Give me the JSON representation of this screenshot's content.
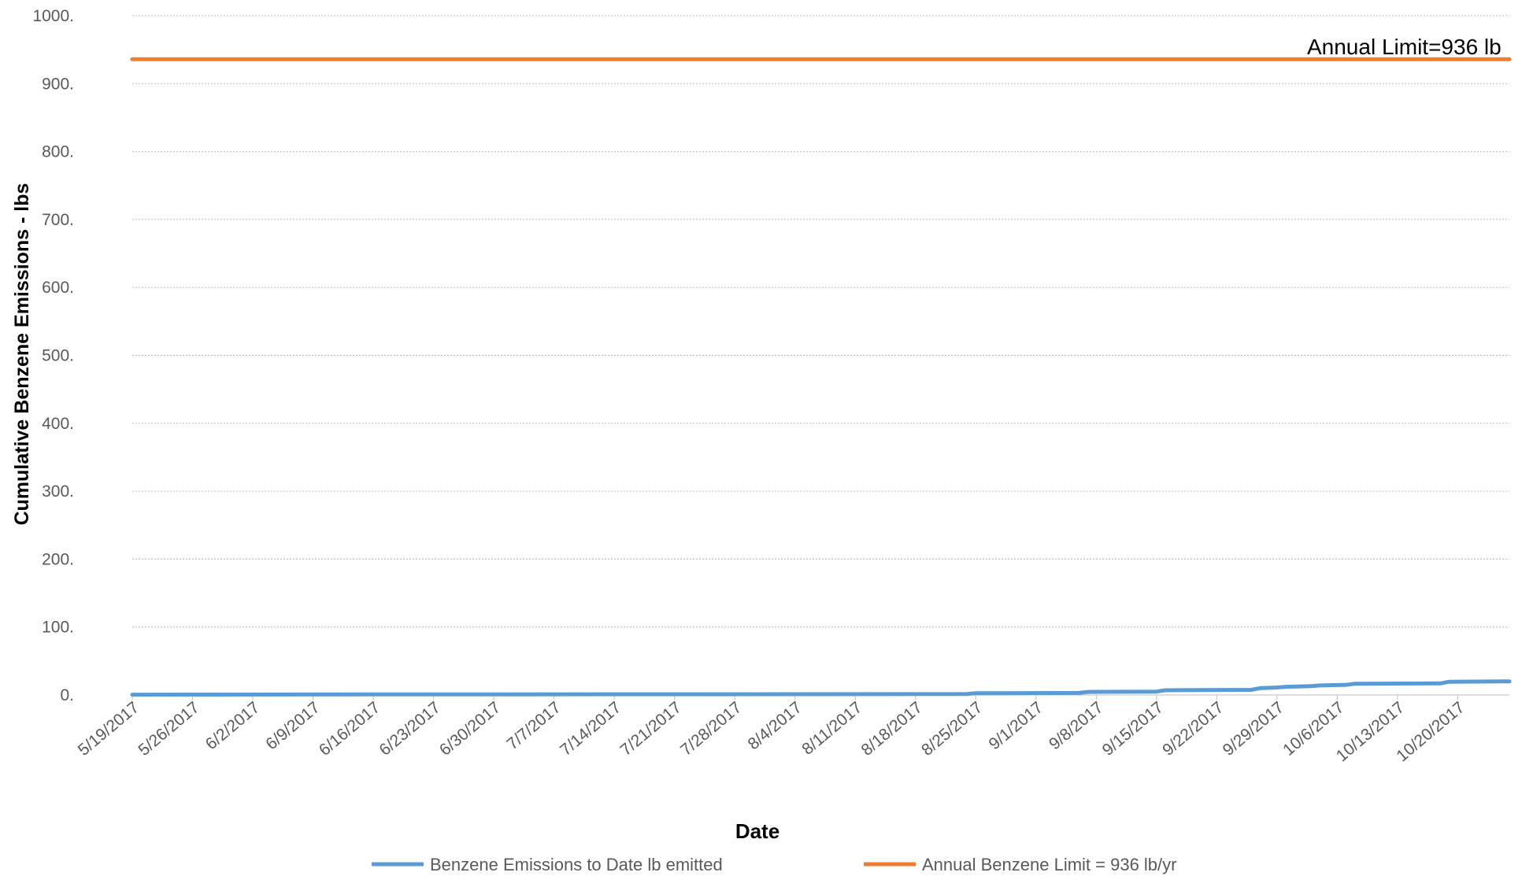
{
  "chart_data": {
    "type": "line",
    "title": "",
    "xlabel": "Date",
    "ylabel": "Cumulative Benzene Emissions - lbs",
    "ylim": [
      0,
      1000
    ],
    "yticks": [
      {
        "value": 0,
        "label": "0."
      },
      {
        "value": 100,
        "label": "100."
      },
      {
        "value": 200,
        "label": "200."
      },
      {
        "value": 300,
        "label": "300."
      },
      {
        "value": 400,
        "label": "400."
      },
      {
        "value": 500,
        "label": "500."
      },
      {
        "value": 600,
        "label": "600."
      },
      {
        "value": 700,
        "label": "700."
      },
      {
        "value": 800,
        "label": "800."
      },
      {
        "value": 900,
        "label": "900."
      },
      {
        "value": 1000,
        "label": "1000."
      }
    ],
    "xlim": [
      "2017-05-19",
      "2017-10-26"
    ],
    "xticks": [
      {
        "date": "2017-05-19",
        "label": "5/19/2017"
      },
      {
        "date": "2017-05-26",
        "label": "5/26/2017"
      },
      {
        "date": "2017-06-02",
        "label": "6/2/2017"
      },
      {
        "date": "2017-06-09",
        "label": "6/9/2017"
      },
      {
        "date": "2017-06-16",
        "label": "6/16/2017"
      },
      {
        "date": "2017-06-23",
        "label": "6/23/2017"
      },
      {
        "date": "2017-06-30",
        "label": "6/30/2017"
      },
      {
        "date": "2017-07-07",
        "label": "7/7/2017"
      },
      {
        "date": "2017-07-14",
        "label": "7/14/2017"
      },
      {
        "date": "2017-07-21",
        "label": "7/21/2017"
      },
      {
        "date": "2017-07-28",
        "label": "7/28/2017"
      },
      {
        "date": "2017-08-04",
        "label": "8/4/2017"
      },
      {
        "date": "2017-08-11",
        "label": "8/11/2017"
      },
      {
        "date": "2017-08-18",
        "label": "8/18/2017"
      },
      {
        "date": "2017-08-25",
        "label": "8/25/2017"
      },
      {
        "date": "2017-09-01",
        "label": "9/1/2017"
      },
      {
        "date": "2017-09-08",
        "label": "9/8/2017"
      },
      {
        "date": "2017-09-15",
        "label": "9/15/2017"
      },
      {
        "date": "2017-09-22",
        "label": "9/22/2017"
      },
      {
        "date": "2017-09-29",
        "label": "9/29/2017"
      },
      {
        "date": "2017-10-06",
        "label": "10/6/2017"
      },
      {
        "date": "2017-10-13",
        "label": "10/13/2017"
      },
      {
        "date": "2017-10-20",
        "label": "10/20/2017"
      }
    ],
    "grid": true,
    "legend_position": "bottom",
    "series": [
      {
        "name": "Benzene Emissions to Date lb emitted",
        "color": "#5b9bd5",
        "points": [
          {
            "x": "2017-05-19",
            "y": 0.5
          },
          {
            "x": "2017-06-15",
            "y": 0.8
          },
          {
            "x": "2017-07-20",
            "y": 1.0
          },
          {
            "x": "2017-08-24",
            "y": 1.4
          },
          {
            "x": "2017-08-25",
            "y": 2.5
          },
          {
            "x": "2017-09-06",
            "y": 3.0
          },
          {
            "x": "2017-09-07",
            "y": 4.5
          },
          {
            "x": "2017-09-15",
            "y": 5.0
          },
          {
            "x": "2017-09-16",
            "y": 7.0
          },
          {
            "x": "2017-09-26",
            "y": 7.5
          },
          {
            "x": "2017-09-27",
            "y": 10.0
          },
          {
            "x": "2017-09-29",
            "y": 11.0
          },
          {
            "x": "2017-09-30",
            "y": 12.0
          },
          {
            "x": "2017-10-03",
            "y": 13.0
          },
          {
            "x": "2017-10-04",
            "y": 14.0
          },
          {
            "x": "2017-10-07",
            "y": 15.0
          },
          {
            "x": "2017-10-08",
            "y": 16.5
          },
          {
            "x": "2017-10-18",
            "y": 17.0
          },
          {
            "x": "2017-10-19",
            "y": 19.5
          },
          {
            "x": "2017-10-26",
            "y": 20.0
          }
        ]
      },
      {
        "name": "Annual Benzene Limit = 936 lb/yr",
        "color": "#ed7d31",
        "points": [
          {
            "x": "2017-05-19",
            "y": 936
          },
          {
            "x": "2017-10-26",
            "y": 936
          }
        ]
      }
    ],
    "annotations": [
      {
        "text": "Annual Limit=936 lb",
        "x": "2017-09-27",
        "y": 936
      }
    ]
  }
}
